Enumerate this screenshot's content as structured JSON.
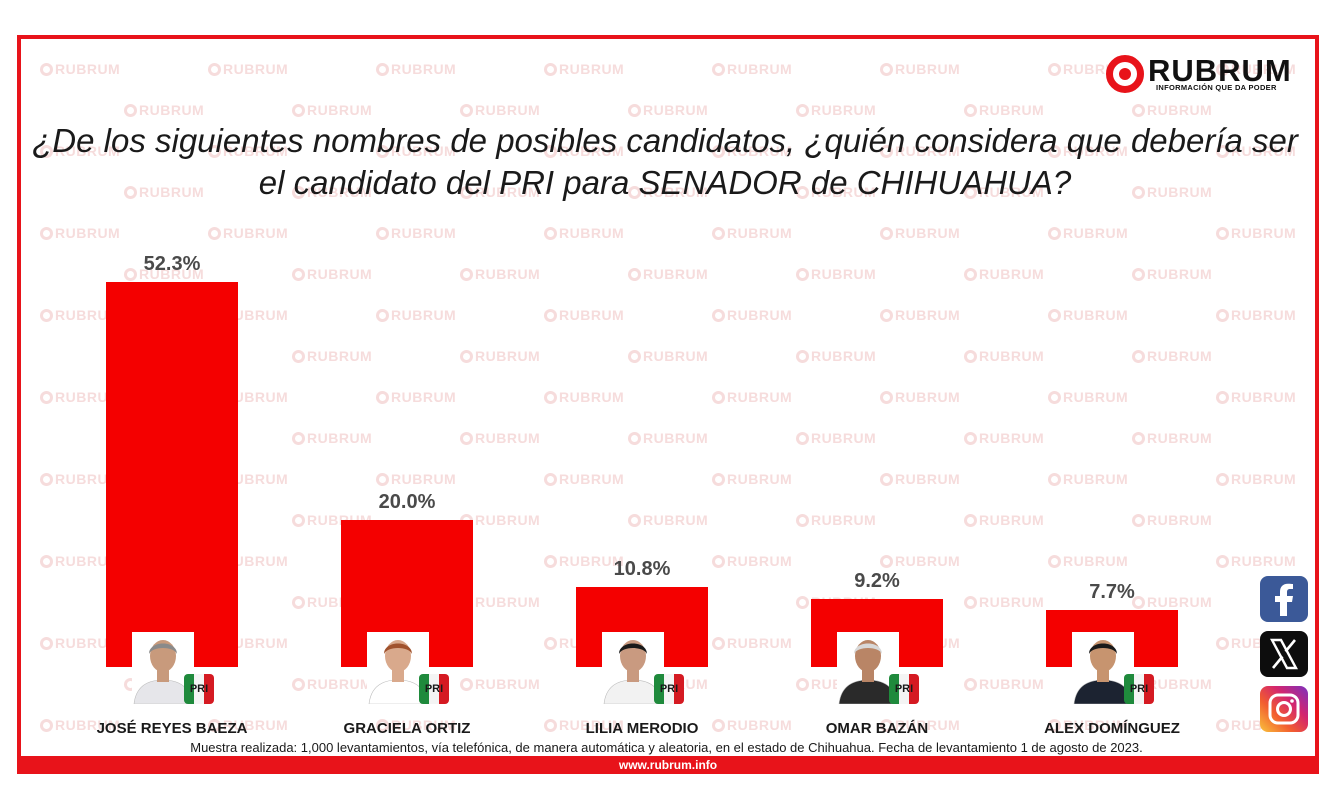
{
  "brand": {
    "name": "RUBRUM",
    "tagline": "INFORMACIÓN QUE DA PODER",
    "watermark": "RUBRUM",
    "accent_color": "#e8131a",
    "bar_color": "#f40000"
  },
  "chart_data": {
    "type": "bar",
    "title": "¿De los siguientes nombres de posibles candidatos, ¿quién considera que debería ser el candidato del PRI para SENADOR de CHIHUAHUA?",
    "categories": [
      "JOSÉ REYES BAEZA",
      "GRACIELA ORTIZ",
      "LILIA MERODIO",
      "OMAR BAZÁN",
      "ALEX DOMÍNGUEZ"
    ],
    "values": [
      52.3,
      20.0,
      10.8,
      9.2,
      7.7
    ],
    "value_labels": [
      "52.3%",
      "20.0%",
      "10.8%",
      "9.2%",
      "7.7%"
    ],
    "unit": "%",
    "ylim": [
      0,
      52.3
    ],
    "grid": false,
    "legend": "none",
    "party_badge": "PRI"
  },
  "footer": {
    "note": "Muestra realizada: 1,000 levantamientos, vía telefónica, de manera automática y aleatoria, en el estado de Chihuahua. Fecha de levantamiento 1 de agosto de 2023.",
    "website": "www.rubrum.info"
  },
  "social": {
    "icons": [
      "facebook-icon",
      "x-icon",
      "instagram-icon"
    ]
  }
}
